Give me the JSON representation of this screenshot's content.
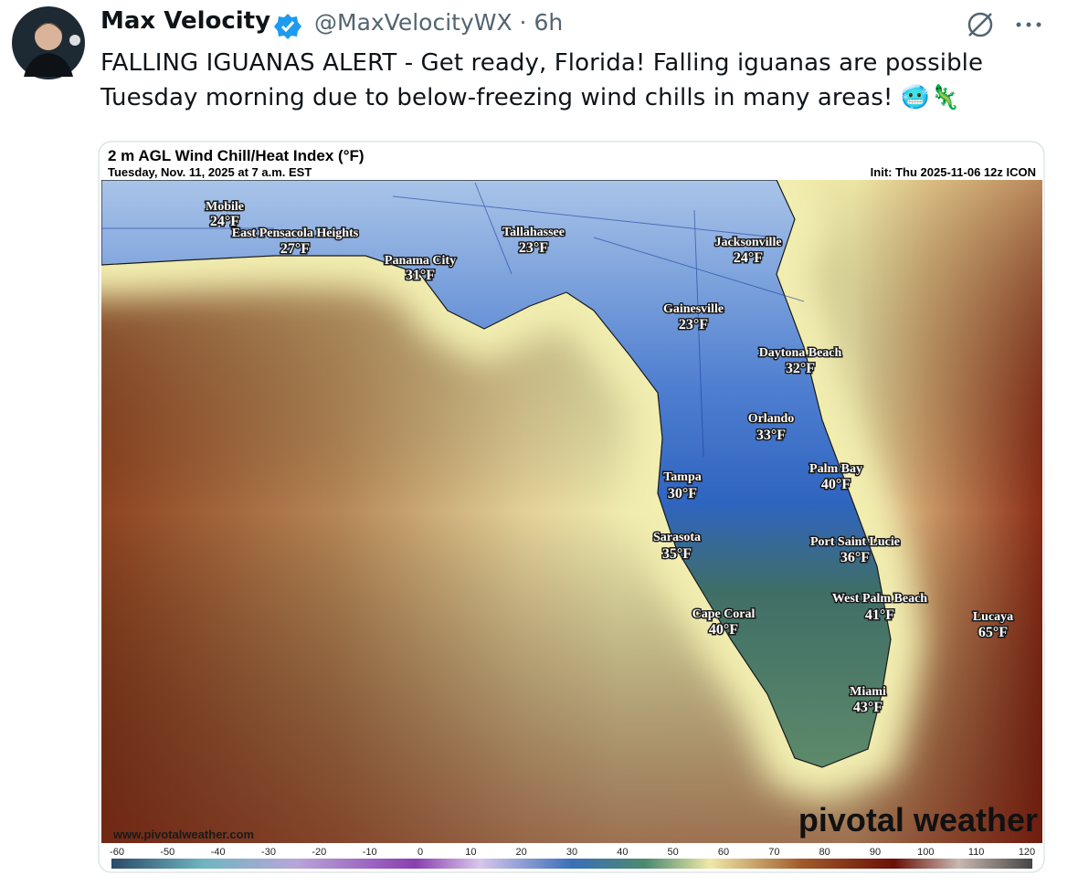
{
  "tweet": {
    "author": "Max Velocity",
    "handle": "@MaxVelocityWX",
    "time": "6h",
    "text_lines": [
      "FALLING IGUANAS ALERT - Get ready, Florida! Falling iguanas are possible",
      "Tuesday morning due to below-freezing wind chills in many areas! 🥶🦎"
    ]
  },
  "map": {
    "title": "2 m AGL Wind Chill/Heat Index (°F)",
    "subtitle": "Tuesday, Nov. 11, 2025 at 7 a.m. EST",
    "init": "Init: Thu 2025-11-06 12z ICON",
    "watermark": "www.pivotalweather.com",
    "logo": "pivotal weather",
    "cities": [
      {
        "name": "Mobile",
        "temp": "24°F"
      },
      {
        "name": "East Pensacola Heights",
        "temp": "27°F"
      },
      {
        "name": "Tallahassee",
        "temp": "23°F"
      },
      {
        "name": "Panama City",
        "temp": "31°F"
      },
      {
        "name": "Jacksonville",
        "temp": "24°F"
      },
      {
        "name": "Gainesville",
        "temp": "23°F"
      },
      {
        "name": "Daytona Beach",
        "temp": "32°F"
      },
      {
        "name": "Orlando",
        "temp": "33°F"
      },
      {
        "name": "Palm Bay",
        "temp": "40°F"
      },
      {
        "name": "Tampa",
        "temp": "30°F"
      },
      {
        "name": "Sarasota",
        "temp": "35°F"
      },
      {
        "name": "Port Saint Lucie",
        "temp": "36°F"
      },
      {
        "name": "West Palm Beach",
        "temp": "41°F"
      },
      {
        "name": "Cape Coral",
        "temp": "40°F"
      },
      {
        "name": "Lucaya",
        "temp": "65°F"
      },
      {
        "name": "Miami",
        "temp": "43°F"
      }
    ],
    "scale_ticks": [
      -60,
      -50,
      -40,
      -30,
      -20,
      -10,
      0,
      10,
      20,
      30,
      40,
      50,
      60,
      70,
      80,
      90,
      100,
      110,
      120
    ]
  }
}
